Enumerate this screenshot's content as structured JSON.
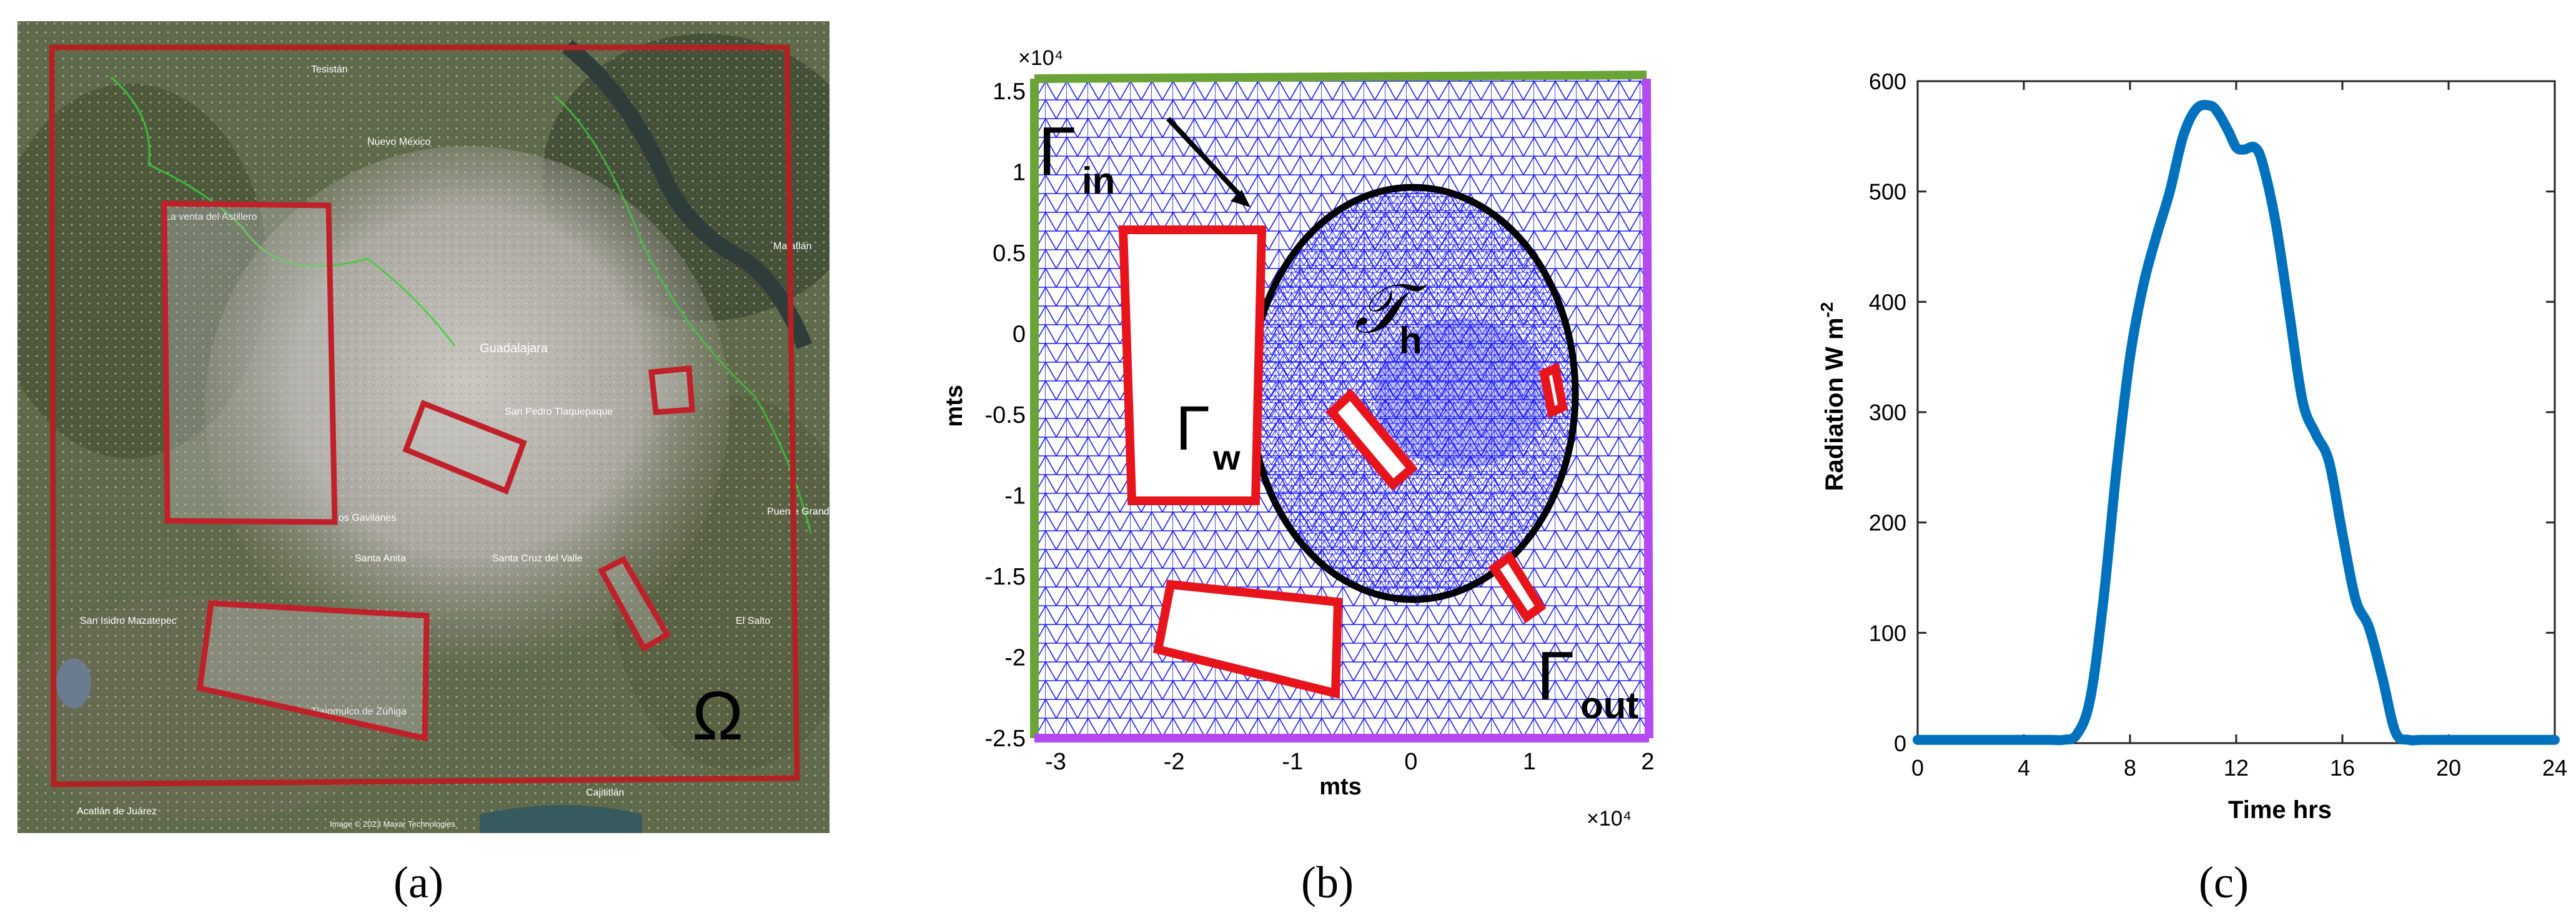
{
  "captions": [
    "(a)",
    "(b)",
    "(c)"
  ],
  "panel_a": {
    "map_labels": [
      "Tesistán",
      "Nuevo México",
      "La venta del Astillero",
      "Guadalajara",
      "San Pedro Tlaquepaque",
      "Los Gavilanes",
      "Santa Anita",
      "Santa Cruz del Valle",
      "San Isidro Mazatepec",
      "Tlajomulco de Zúñiga",
      "El Salto",
      "Puente Grande",
      "Matatlán",
      "Acatlán de Juárez",
      "Cajititlán",
      "Image © 2023 Maxar Technologies"
    ],
    "domain_symbol": "Ω",
    "colors": {
      "domain": "#b22222",
      "zones": "#c0202a"
    }
  },
  "panel_b": {
    "type": "mesh",
    "x_ticks": [
      "-3",
      "-2",
      "-1",
      "0",
      "1",
      "2"
    ],
    "y_ticks": [
      "1.5",
      "1",
      "0.5",
      "0",
      "-0.5",
      "-1",
      "-1.5",
      "-2",
      "-2.5"
    ],
    "xlabel": "mts",
    "ylabel": "mts",
    "x_scale": "×10⁴",
    "y_scale": "×10⁴",
    "boundary_labels": {
      "inlet": "Γ",
      "inlet_sub": "in",
      "wall": "Γ",
      "wall_sub": "w",
      "outlet": "Γ",
      "outlet_sub": "out",
      "mesh": "𝒯",
      "mesh_sub": "h"
    },
    "colors": {
      "mesh": "#1a1aff",
      "inlet": "#6aa336",
      "outlet": "#b44af0",
      "wall": "#e8141c",
      "circle": "#000000"
    }
  },
  "chart_data": {
    "type": "line",
    "xlabel": "Time hrs",
    "ylabel": "Radiation W m",
    "ylabel_sup": "-2",
    "xlim": [
      0,
      24
    ],
    "ylim": [
      0,
      600
    ],
    "x_ticks": [
      0,
      4,
      8,
      12,
      16,
      20,
      24
    ],
    "y_ticks": [
      0,
      100,
      200,
      300,
      400,
      500,
      600
    ],
    "series": [
      {
        "color": "#0072bd",
        "x": [
          0,
          1,
          2,
          3,
          4,
          5,
          5.5,
          6,
          6.5,
          7,
          7.5,
          8,
          8.5,
          9,
          9.5,
          10,
          10.5,
          11,
          11.3,
          11.7,
          12,
          12.3,
          12.7,
          13,
          13.5,
          14,
          14.5,
          15,
          15.5,
          16,
          16.5,
          17,
          17.5,
          18,
          18.5,
          19,
          20,
          21,
          22,
          23,
          24
        ],
        "y": [
          3,
          3,
          3,
          3,
          3,
          3,
          3,
          8,
          40,
          130,
          250,
          350,
          415,
          460,
          500,
          550,
          575,
          578,
          572,
          555,
          540,
          538,
          540,
          525,
          470,
          390,
          310,
          280,
          255,
          190,
          130,
          105,
          60,
          10,
          3,
          3,
          3,
          3,
          3,
          3,
          3
        ]
      }
    ]
  }
}
